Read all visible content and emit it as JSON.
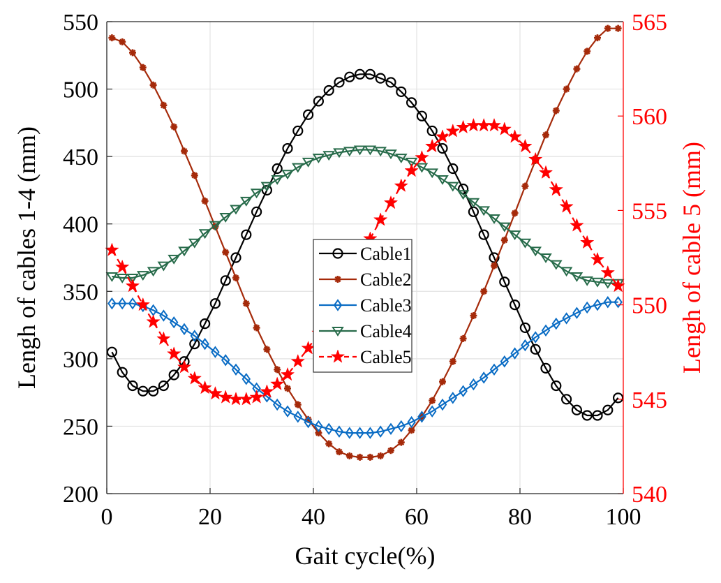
{
  "chart_data": {
    "type": "line",
    "title": "",
    "xlabel": "Gait cycle(%)",
    "ylabel": "Lengh of cables 1-4 (mm)",
    "y2label": "Lengh of cable 5 (mm)",
    "xlim": [
      0,
      100
    ],
    "ylim": [
      200,
      550
    ],
    "y2lim": [
      540,
      565
    ],
    "xticks": [
      "0",
      "20",
      "40",
      "60",
      "80",
      "100"
    ],
    "yticks": [
      "200",
      "250",
      "300",
      "350",
      "400",
      "450",
      "500",
      "550"
    ],
    "y2ticks": [
      "540",
      "545",
      "550",
      "555",
      "560",
      "565"
    ],
    "grid": true,
    "legend_position": "center",
    "x": [
      1,
      3,
      5,
      7,
      9,
      11,
      13,
      15,
      17,
      19,
      21,
      23,
      25,
      27,
      29,
      31,
      33,
      35,
      37,
      39,
      41,
      43,
      45,
      47,
      49,
      51,
      53,
      55,
      57,
      59,
      61,
      63,
      65,
      67,
      69,
      71,
      73,
      75,
      77,
      79,
      81,
      83,
      85,
      87,
      89,
      91,
      93,
      95,
      97,
      99
    ],
    "series": [
      {
        "name": "Cable1",
        "axis": "left",
        "color": "#000000",
        "marker": "circle",
        "dash": "solid",
        "values": [
          305,
          290,
          280,
          276,
          276,
          280,
          288,
          298,
          311,
          326,
          341,
          358,
          375,
          392,
          409,
          425,
          441,
          456,
          469,
          481,
          491,
          499,
          505,
          509,
          511,
          511,
          508,
          505,
          498,
          490,
          480,
          469,
          456,
          441,
          426,
          409,
          392,
          375,
          357,
          340,
          323,
          307,
          293,
          280,
          270,
          262,
          258,
          258,
          262,
          271
        ]
      },
      {
        "name": "Cable2",
        "axis": "left",
        "color": "#a52a0a",
        "marker": "asterisk",
        "dash": "solid",
        "values": [
          538,
          535,
          527,
          516,
          503,
          488,
          472,
          454,
          436,
          417,
          398,
          379,
          360,
          341,
          323,
          307,
          292,
          278,
          266,
          255,
          245,
          237,
          231,
          228,
          227,
          227,
          228,
          232,
          238,
          247,
          257,
          269,
          283,
          298,
          315,
          332,
          350,
          369,
          388,
          408,
          428,
          447,
          466,
          484,
          500,
          515,
          528,
          538,
          545,
          545
        ]
      },
      {
        "name": "Cable3",
        "axis": "left",
        "color": "#0a6cc4",
        "marker": "diamond",
        "dash": "solid",
        "values": [
          341,
          341,
          341,
          339,
          336,
          332,
          327,
          322,
          317,
          311,
          305,
          299,
          292,
          285,
          278,
          272,
          266,
          261,
          257,
          253,
          250,
          248,
          246,
          245,
          245,
          245,
          246,
          248,
          250,
          253,
          257,
          261,
          266,
          271,
          276,
          281,
          286,
          292,
          298,
          304,
          310,
          316,
          321,
          326,
          330,
          334,
          338,
          340,
          342,
          342
        ]
      },
      {
        "name": "Cable4",
        "axis": "left",
        "color": "#276b4a",
        "marker": "triangle-down",
        "dash": "solid",
        "values": [
          361,
          360,
          360,
          362,
          365,
          369,
          374,
          380,
          386,
          393,
          399,
          405,
          411,
          417,
          423,
          428,
          433,
          437,
          442,
          446,
          449,
          451,
          453,
          454,
          455,
          455,
          454,
          452,
          449,
          446,
          442,
          438,
          433,
          428,
          422,
          416,
          410,
          404,
          398,
          392,
          386,
          380,
          375,
          370,
          365,
          361,
          358,
          357,
          356,
          356
        ]
      },
      {
        "name": "Cable5",
        "axis": "right",
        "color": "#ff0000",
        "marker": "star",
        "dash": "dashed",
        "values": [
          552.9,
          552.0,
          551.0,
          550.0,
          549.1,
          548.2,
          547.4,
          546.7,
          546.1,
          545.6,
          545.3,
          545.1,
          545.0,
          545.0,
          545.1,
          545.4,
          545.8,
          546.3,
          547.0,
          547.7,
          548.5,
          549.5,
          550.4,
          551.5,
          552.5,
          553.5,
          554.5,
          555.4,
          556.3,
          557.1,
          557.8,
          558.4,
          558.9,
          559.2,
          559.4,
          559.5,
          559.5,
          559.5,
          559.3,
          558.9,
          558.4,
          557.7,
          557.0,
          556.1,
          555.2,
          554.2,
          553.3,
          552.4,
          551.7,
          551.0
        ]
      }
    ]
  }
}
